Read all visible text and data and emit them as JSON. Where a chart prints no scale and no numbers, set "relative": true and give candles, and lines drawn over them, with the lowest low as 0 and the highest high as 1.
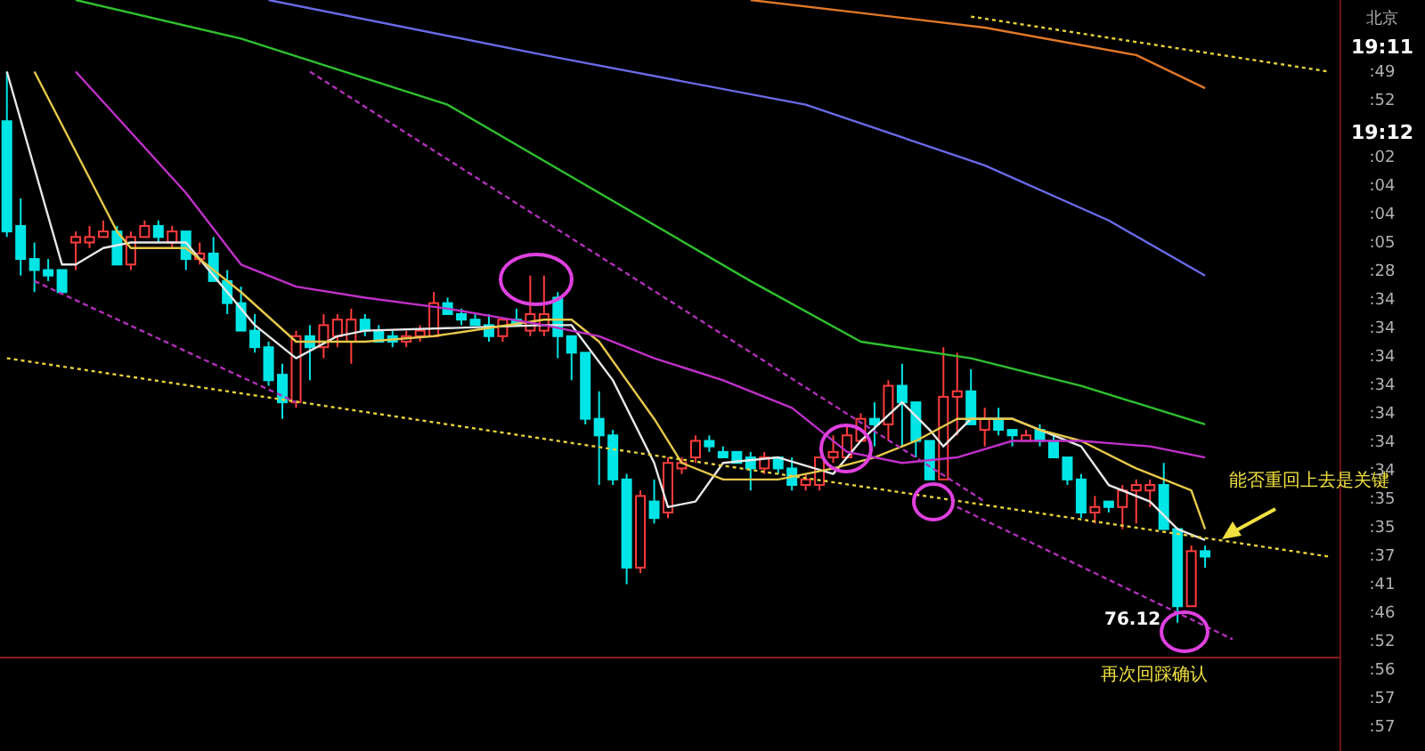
{
  "chart_data": {
    "type": "candlestick",
    "relative": true,
    "tick_labels": false,
    "categories": [
      null,
      null,
      null,
      null,
      null,
      null,
      null,
      null,
      null,
      null,
      null,
      null,
      null,
      null,
      null,
      null,
      null,
      null,
      null,
      null,
      null,
      null,
      null,
      null,
      null,
      null,
      null,
      null,
      null,
      null,
      null,
      null,
      null,
      null,
      null,
      null,
      null,
      null,
      null,
      null,
      null,
      null,
      null,
      null,
      null,
      null,
      null,
      null,
      null,
      null,
      null,
      null,
      null,
      null,
      null,
      null,
      null,
      null,
      null,
      null,
      null,
      null,
      null,
      null,
      null,
      null,
      null,
      null,
      null,
      null,
      null,
      null,
      null,
      null,
      null,
      null,
      null,
      null,
      null,
      null,
      null,
      null,
      null,
      null,
      null,
      null,
      null,
      null,
      null,
      null,
      null,
      null,
      null,
      null,
      null,
      null,
      null
    ],
    "ohlc": [
      [
        0.91,
        1.0,
        0.7,
        0.71
      ],
      [
        0.72,
        0.77,
        0.63,
        0.66
      ],
      [
        0.66,
        0.69,
        0.6,
        0.64
      ],
      [
        0.64,
        0.66,
        0.62,
        0.63
      ],
      [
        0.64,
        0.64,
        0.6,
        0.6
      ],
      [
        0.69,
        0.71,
        0.64,
        0.7
      ],
      [
        0.69,
        0.72,
        0.68,
        0.7
      ],
      [
        0.7,
        0.73,
        0.7,
        0.71
      ],
      [
        0.71,
        0.72,
        0.65,
        0.65
      ],
      [
        0.65,
        0.71,
        0.64,
        0.7
      ],
      [
        0.7,
        0.73,
        0.7,
        0.72
      ],
      [
        0.72,
        0.73,
        0.69,
        0.7
      ],
      [
        0.69,
        0.72,
        0.68,
        0.71
      ],
      [
        0.71,
        0.71,
        0.64,
        0.66
      ],
      [
        0.66,
        0.69,
        0.65,
        0.67
      ],
      [
        0.67,
        0.7,
        0.62,
        0.62
      ],
      [
        0.62,
        0.64,
        0.56,
        0.58
      ],
      [
        0.58,
        0.61,
        0.53,
        0.53
      ],
      [
        0.53,
        0.56,
        0.49,
        0.5
      ],
      [
        0.5,
        0.51,
        0.43,
        0.44
      ],
      [
        0.45,
        0.47,
        0.37,
        0.4
      ],
      [
        0.4,
        0.53,
        0.39,
        0.52
      ],
      [
        0.52,
        0.54,
        0.44,
        0.5
      ],
      [
        0.5,
        0.56,
        0.48,
        0.54
      ],
      [
        0.52,
        0.56,
        0.5,
        0.55
      ],
      [
        0.51,
        0.57,
        0.47,
        0.55
      ],
      [
        0.55,
        0.56,
        0.52,
        0.53
      ],
      [
        0.53,
        0.54,
        0.51,
        0.51
      ],
      [
        0.52,
        0.53,
        0.5,
        0.51
      ],
      [
        0.51,
        0.53,
        0.5,
        0.52
      ],
      [
        0.52,
        0.54,
        0.51,
        0.53
      ],
      [
        0.52,
        0.6,
        0.52,
        0.58
      ],
      [
        0.58,
        0.59,
        0.56,
        0.56
      ],
      [
        0.56,
        0.57,
        0.54,
        0.55
      ],
      [
        0.55,
        0.56,
        0.54,
        0.54
      ],
      [
        0.54,
        0.56,
        0.51,
        0.52
      ],
      [
        0.52,
        0.55,
        0.51,
        0.55
      ],
      [
        0.55,
        0.57,
        0.54,
        0.54
      ],
      [
        0.53,
        0.63,
        0.52,
        0.56
      ],
      [
        0.53,
        0.63,
        0.52,
        0.56
      ],
      [
        0.59,
        0.6,
        0.48,
        0.52
      ],
      [
        0.52,
        0.52,
        0.44,
        0.49
      ],
      [
        0.49,
        0.49,
        0.36,
        0.37
      ],
      [
        0.37,
        0.42,
        0.25,
        0.34
      ],
      [
        0.34,
        0.35,
        0.25,
        0.26
      ],
      [
        0.26,
        0.27,
        0.07,
        0.1
      ],
      [
        0.1,
        0.24,
        0.09,
        0.23
      ],
      [
        0.22,
        0.26,
        0.18,
        0.19
      ],
      [
        0.2,
        0.3,
        0.19,
        0.29
      ],
      [
        0.28,
        0.3,
        0.27,
        0.29
      ],
      [
        0.3,
        0.34,
        0.29,
        0.33
      ],
      [
        0.33,
        0.34,
        0.31,
        0.32
      ],
      [
        0.31,
        0.32,
        0.3,
        0.3
      ],
      [
        0.31,
        0.31,
        0.29,
        0.29
      ],
      [
        0.3,
        0.31,
        0.24,
        0.28
      ],
      [
        0.28,
        0.31,
        0.27,
        0.3
      ],
      [
        0.3,
        0.3,
        0.27,
        0.28
      ],
      [
        0.28,
        0.3,
        0.24,
        0.25
      ],
      [
        0.25,
        0.27,
        0.24,
        0.26
      ],
      [
        0.25,
        0.3,
        0.24,
        0.3
      ],
      [
        0.3,
        0.34,
        0.29,
        0.31
      ],
      [
        0.3,
        0.36,
        0.3,
        0.34
      ],
      [
        0.33,
        0.38,
        0.33,
        0.37
      ],
      [
        0.37,
        0.4,
        0.32,
        0.36
      ],
      [
        0.36,
        0.44,
        0.33,
        0.43
      ],
      [
        0.43,
        0.47,
        0.32,
        0.4
      ],
      [
        0.4,
        0.4,
        0.3,
        0.33
      ],
      [
        0.33,
        0.33,
        0.26,
        0.26
      ],
      [
        0.26,
        0.5,
        0.26,
        0.41
      ],
      [
        0.41,
        0.49,
        0.34,
        0.42
      ],
      [
        0.42,
        0.46,
        0.36,
        0.36
      ],
      [
        0.35,
        0.39,
        0.32,
        0.37
      ],
      [
        0.37,
        0.39,
        0.34,
        0.35
      ],
      [
        0.35,
        0.35,
        0.32,
        0.34
      ],
      [
        0.33,
        0.35,
        0.33,
        0.34
      ],
      [
        0.35,
        0.36,
        0.32,
        0.33
      ],
      [
        0.33,
        0.34,
        0.3,
        0.3
      ],
      [
        0.3,
        0.3,
        0.25,
        0.26
      ],
      [
        0.26,
        0.27,
        0.19,
        0.2
      ],
      [
        0.2,
        0.23,
        0.18,
        0.21
      ],
      [
        0.22,
        0.22,
        0.2,
        0.21
      ],
      [
        0.21,
        0.25,
        0.17,
        0.24
      ],
      [
        0.24,
        0.26,
        0.18,
        0.25
      ],
      [
        0.24,
        0.26,
        0.21,
        0.25
      ],
      [
        0.25,
        0.29,
        0.17,
        0.17
      ],
      [
        0.17,
        0.17,
        0.0,
        0.03
      ],
      [
        0.03,
        0.14,
        0.03,
        0.13
      ],
      [
        0.13,
        0.14,
        0.1,
        0.12
      ],
      null,
      null,
      null,
      null,
      null,
      null,
      null,
      null,
      null
    ],
    "colors": [
      "#00e5e5",
      "#00e5e5",
      "#00e5e5",
      "#00e5e5",
      "#00e5e5",
      "#ff3c3c",
      "#ff3c3c",
      "#ff3c3c",
      "#00e5e5",
      "#ff3c3c",
      "#ff3c3c",
      "#00e5e5",
      "#ff3c3c",
      "#00e5e5",
      "#ff3c3c",
      "#00e5e5",
      "#00e5e5",
      "#00e5e5",
      "#00e5e5",
      "#00e5e5",
      "#00e5e5",
      "#ff3c3c",
      "#00e5e5",
      "#ff3c3c",
      "#ff3c3c",
      "#ff3c3c",
      "#00e5e5",
      "#00e5e5",
      "#00e5e5",
      "#ff3c3c",
      "#ff3c3c",
      "#ff3c3c",
      "#00e5e5",
      "#00e5e5",
      "#00e5e5",
      "#00e5e5",
      "#ff3c3c",
      "#00e5e5",
      "#ff3c3c",
      "#ff3c3c",
      "#00e5e5",
      "#00e5e5",
      "#00e5e5",
      "#00e5e5",
      "#00e5e5",
      "#00e5e5",
      "#ff3c3c",
      "#00e5e5",
      "#ff3c3c",
      "#ff3c3c",
      "#ff3c3c",
      "#00e5e5",
      "#00e5e5",
      "#00e5e5",
      "#00e5e5",
      "#ff3c3c",
      "#00e5e5",
      "#00e5e5",
      "#ff3c3c",
      "#ff3c3c",
      "#ff3c3c",
      "#ff3c3c",
      "#ff3c3c",
      "#00e5e5",
      "#ff3c3c",
      "#00e5e5",
      "#00e5e5",
      "#00e5e5",
      "#ff3c3c",
      "#ff3c3c",
      "#00e5e5",
      "#ff3c3c",
      "#00e5e5",
      "#00e5e5",
      "#ff3c3c",
      "#00e5e5",
      "#00e5e5",
      "#00e5e5",
      "#00e5e5",
      "#ff3c3c",
      "#00e5e5",
      "#ff3c3c",
      "#ff3c3c",
      "#ff3c3c",
      "#00e5e5",
      "#00e5e5",
      "#ff3c3c",
      "#00e5e5",
      null,
      null,
      null,
      null,
      null,
      null,
      null,
      null,
      null
    ],
    "series": [
      {
        "type": "line",
        "color": "#e8e8e8",
        "values": [
          1.0,
          null,
          null,
          null,
          0.65,
          0.65,
          null,
          0.68,
          null,
          0.69,
          null,
          null,
          null,
          0.69,
          null,
          0.63,
          null,
          null,
          0.54,
          null,
          null,
          0.48,
          null,
          null,
          0.52,
          null,
          0.53,
          null,
          null,
          null,
          null,
          null,
          null,
          null,
          null,
          null,
          null,
          null,
          null,
          0.54,
          null,
          0.54,
          null,
          null,
          0.44,
          null,
          null,
          0.29,
          0.21,
          null,
          0.22,
          null,
          0.29,
          null,
          null,
          null,
          0.3,
          null,
          null,
          null,
          0.27,
          null,
          0.33,
          null,
          null,
          0.4,
          null,
          0.35,
          0.32,
          null,
          0.37,
          null,
          null,
          0.37,
          null,
          0.35,
          null,
          null,
          0.32,
          null,
          0.25,
          null,
          null,
          0.22,
          null,
          0.17,
          null,
          0.15,
          null,
          null,
          null,
          null,
          null,
          null,
          null,
          null,
          null
        ]
      },
      {
        "type": "line",
        "color": "#e6c84a",
        "values": [
          null,
          null,
          1.0,
          null,
          null,
          null,
          null,
          null,
          0.71,
          0.68,
          null,
          null,
          null,
          0.68,
          null,
          null,
          null,
          0.6,
          null,
          null,
          null,
          0.51,
          null,
          0.51,
          null,
          null,
          0.51,
          null,
          null,
          null,
          null,
          0.52,
          null,
          null,
          null,
          null,
          null,
          null,
          null,
          0.55,
          null,
          0.55,
          null,
          0.51,
          null,
          null,
          null,
          0.37,
          null,
          0.29,
          null,
          null,
          0.26,
          null,
          null,
          null,
          0.26,
          null,
          null,
          null,
          0.28,
          null,
          null,
          0.3,
          null,
          null,
          0.33,
          null,
          null,
          0.37,
          null,
          null,
          null,
          0.37,
          null,
          0.35,
          null,
          null,
          0.33,
          null,
          null,
          null,
          0.28,
          null,
          null,
          null,
          0.24,
          0.17,
          null,
          null,
          null,
          null,
          null,
          null,
          null,
          null,
          null
        ]
      },
      {
        "type": "line",
        "color": "#c030c8",
        "values": [
          null,
          null,
          null,
          null,
          null,
          1.0,
          null,
          null,
          null,
          null,
          null,
          null,
          null,
          0.78,
          null,
          null,
          null,
          0.65,
          null,
          null,
          null,
          0.61,
          null,
          null,
          null,
          null,
          0.59,
          null,
          null,
          null,
          null,
          null,
          0.57,
          null,
          null,
          null,
          null,
          null,
          null,
          0.54,
          null,
          null,
          null,
          0.52,
          null,
          null,
          null,
          0.48,
          null,
          null,
          null,
          null,
          0.44,
          null,
          null,
          null,
          null,
          0.39,
          null,
          null,
          null,
          0.31,
          null,
          null,
          null,
          0.29,
          null,
          null,
          null,
          0.3,
          null,
          null,
          null,
          0.33,
          null,
          null,
          null,
          null,
          0.33,
          null,
          null,
          null,
          null,
          0.32,
          null,
          null,
          null,
          0.3,
          null,
          null,
          null,
          null,
          null,
          null,
          null,
          null,
          null
        ]
      },
      {
        "type": "line",
        "color": "#2ec02e",
        "values": [
          null,
          null,
          null,
          null,
          null,
          1.13,
          null,
          null,
          null,
          null,
          null,
          null,
          null,
          null,
          null,
          null,
          null,
          1.06,
          null,
          null,
          null,
          null,
          null,
          null,
          null,
          null,
          null,
          null,
          null,
          null,
          null,
          null,
          0.94,
          null,
          null,
          null,
          null,
          null,
          null,
          null,
          null,
          null,
          null,
          0.78,
          null,
          null,
          null,
          null,
          null,
          null,
          null,
          null,
          null,
          null,
          0.62,
          null,
          null,
          null,
          null,
          null,
          null,
          null,
          0.51,
          null,
          null,
          null,
          null,
          null,
          null,
          null,
          0.48,
          null,
          null,
          null,
          null,
          null,
          null,
          null,
          0.43,
          null,
          null,
          null,
          null,
          null,
          null,
          null,
          null,
          0.36,
          null,
          null,
          null,
          null,
          null,
          null,
          null,
          null,
          null
        ]
      },
      {
        "type": "line",
        "color": "#6a6ae8",
        "values": [
          null,
          null,
          null,
          null,
          null,
          null,
          null,
          null,
          null,
          null,
          null,
          null,
          null,
          null,
          null,
          null,
          null,
          null,
          null,
          1.13,
          null,
          null,
          null,
          null,
          null,
          null,
          null,
          null,
          null,
          null,
          null,
          null,
          null,
          null,
          null,
          null,
          null,
          null,
          null,
          1.03,
          null,
          null,
          null,
          null,
          null,
          null,
          null,
          null,
          null,
          null,
          null,
          null,
          null,
          null,
          null,
          null,
          null,
          null,
          0.94,
          null,
          null,
          null,
          null,
          null,
          null,
          null,
          null,
          null,
          null,
          null,
          null,
          0.83,
          null,
          null,
          null,
          null,
          null,
          null,
          null,
          null,
          0.73,
          null,
          null,
          null,
          null,
          null,
          null,
          0.63,
          null,
          null,
          null,
          null,
          null,
          null,
          null,
          null,
          null
        ]
      },
      {
        "type": "line",
        "color": "#e07828",
        "values": [
          null,
          null,
          null,
          null,
          null,
          null,
          null,
          null,
          null,
          null,
          null,
          null,
          null,
          null,
          null,
          null,
          null,
          null,
          null,
          null,
          null,
          null,
          null,
          null,
          null,
          null,
          null,
          null,
          null,
          null,
          null,
          null,
          null,
          null,
          null,
          null,
          null,
          null,
          null,
          null,
          null,
          null,
          null,
          null,
          null,
          null,
          null,
          null,
          null,
          null,
          null,
          null,
          null,
          null,
          1.13,
          null,
          null,
          null,
          null,
          null,
          null,
          null,
          null,
          null,
          null,
          null,
          null,
          null,
          null,
          null,
          null,
          1.08,
          null,
          null,
          null,
          null,
          null,
          null,
          null,
          null,
          null,
          null,
          1.03,
          null,
          null,
          null,
          null,
          0.97,
          null,
          null,
          null,
          null,
          null,
          null,
          null,
          null,
          null
        ]
      },
      {
        "type": "line",
        "color": "#e6d23c",
        "line_style": "dotted",
        "values": [
          0.48,
          null,
          null,
          null,
          null,
          null,
          null,
          null,
          null,
          null,
          null,
          null,
          null,
          null,
          null,
          null,
          null,
          null,
          null,
          null,
          null,
          null,
          null,
          null,
          null,
          null,
          null,
          null,
          null,
          null,
          null,
          null,
          null,
          null,
          null,
          null,
          null,
          null,
          null,
          null,
          null,
          null,
          null,
          null,
          null,
          null,
          null,
          null,
          null,
          null,
          null,
          null,
          null,
          null,
          null,
          null,
          null,
          null,
          null,
          null,
          null,
          null,
          null,
          null,
          null,
          null,
          null,
          null,
          null,
          null,
          null,
          null,
          null,
          null,
          null,
          null,
          null,
          null,
          null,
          null,
          null,
          null,
          null,
          null,
          null,
          null,
          null,
          null,
          null,
          null,
          null,
          null,
          null,
          null,
          null,
          null,
          0.12
        ]
      },
      {
        "type": "line",
        "color": "#e6d23c",
        "line_style": "dotted",
        "values": [
          null,
          null,
          null,
          null,
          null,
          null,
          null,
          null,
          null,
          null,
          null,
          null,
          null,
          null,
          null,
          null,
          null,
          null,
          null,
          null,
          null,
          null,
          null,
          null,
          null,
          null,
          null,
          null,
          null,
          null,
          null,
          null,
          null,
          null,
          null,
          null,
          null,
          null,
          null,
          null,
          null,
          null,
          null,
          null,
          null,
          null,
          null,
          null,
          null,
          null,
          null,
          null,
          null,
          null,
          null,
          null,
          null,
          null,
          null,
          null,
          null,
          null,
          null,
          null,
          null,
          null,
          null,
          null,
          null,
          null,
          1.1,
          null,
          null,
          null,
          null,
          null,
          null,
          null,
          null,
          null,
          null,
          null,
          null,
          null,
          null,
          null,
          null,
          null,
          null,
          null,
          null,
          null,
          null,
          null,
          null,
          null,
          1.0
        ]
      },
      {
        "type": "line",
        "color": "#b030b8",
        "line_style": "dashed",
        "values": [
          null,
          null,
          0.62,
          null,
          null,
          null,
          null,
          null,
          null,
          null,
          null,
          null,
          null,
          null,
          null,
          null,
          null,
          null,
          null,
          null,
          null,
          0.4,
          null,
          null,
          null,
          null,
          null,
          null,
          null,
          null,
          null,
          null,
          null,
          null,
          null,
          null,
          null,
          null,
          null,
          null,
          null,
          null,
          null,
          null,
          null,
          null,
          null,
          null,
          null,
          null,
          null,
          null,
          null,
          null,
          null,
          null,
          null,
          null,
          null,
          null,
          null,
          null,
          null,
          null,
          null,
          null,
          null,
          null,
          null,
          null,
          null,
          null,
          null,
          null,
          null,
          null,
          null,
          null,
          null,
          null,
          null,
          null,
          null,
          null,
          null,
          null,
          null,
          null,
          null,
          null,
          null,
          null,
          null,
          null,
          null,
          null,
          null
        ]
      },
      {
        "type": "line",
        "color": "#b030b8",
        "line_style": "dashed",
        "values": [
          null,
          null,
          null,
          null,
          null,
          null,
          null,
          null,
          null,
          null,
          null,
          null,
          null,
          null,
          null,
          null,
          null,
          null,
          null,
          null,
          null,
          null,
          1.0,
          null,
          null,
          null,
          null,
          null,
          null,
          null,
          null,
          null,
          null,
          null,
          null,
          null,
          null,
          null,
          null,
          null,
          null,
          null,
          null,
          null,
          null,
          null,
          null,
          null,
          null,
          null,
          null,
          null,
          null,
          null,
          null,
          null,
          null,
          null,
          null,
          null,
          null,
          null,
          null,
          null,
          null,
          null,
          null,
          null,
          null,
          null,
          null,
          0.22,
          null,
          null,
          null,
          null,
          null,
          null,
          null,
          null,
          null,
          null,
          null,
          null,
          null,
          null,
          null,
          null,
          null,
          null,
          null,
          null,
          null,
          null,
          null,
          null,
          null
        ]
      },
      {
        "type": "line",
        "color": "#b030b8",
        "line_style": "dashed",
        "values": [
          null,
          null,
          null,
          null,
          null,
          null,
          null,
          null,
          null,
          null,
          null,
          null,
          null,
          null,
          null,
          null,
          null,
          null,
          null,
          null,
          null,
          null,
          null,
          null,
          null,
          null,
          null,
          null,
          null,
          null,
          null,
          null,
          null,
          null,
          null,
          null,
          null,
          null,
          null,
          null,
          null,
          null,
          null,
          null,
          null,
          null,
          null,
          null,
          null,
          null,
          null,
          null,
          null,
          null,
          null,
          null,
          null,
          null,
          null,
          null,
          null,
          null,
          null,
          null,
          null,
          null,
          null,
          null,
          null,
          0.21,
          null,
          null,
          null,
          null,
          null,
          null,
          null,
          null,
          null,
          null,
          null,
          null,
          null,
          null,
          null,
          null,
          null,
          null,
          null,
          -0.03,
          null,
          null,
          null,
          null,
          null,
          null,
          null
        ]
      }
    ],
    "annotations": [
      "76.12",
      "能否重回上去是关键",
      "再次回踩确认",
      "北京",
      "19:11",
      ":49",
      ":52",
      "19:12",
      ":02",
      ":04",
      ":04",
      ":05",
      ":28",
      ":34",
      ":34",
      ":34",
      ":34",
      ":34",
      ":34",
      ":34",
      ":35",
      ":35",
      ":37",
      ":41",
      ":46",
      ":52",
      ":56",
      ":57",
      ":57"
    ]
  }
}
